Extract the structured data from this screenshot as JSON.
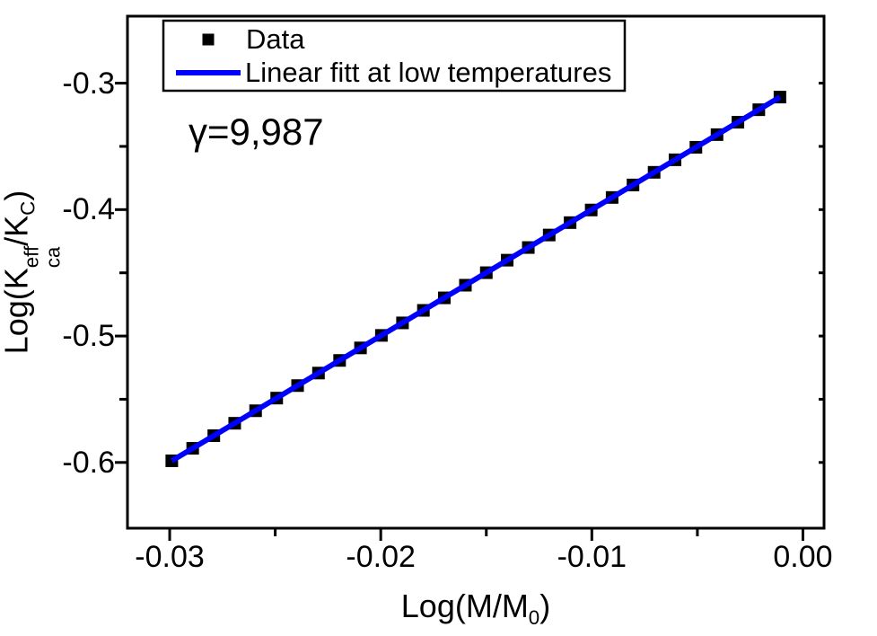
{
  "chart_data": {
    "type": "scatter",
    "title": "",
    "xlabel": "Log(M/M0)",
    "ylabel": "Log(Kca^eff/KC)",
    "xlabel_parts": {
      "pre": "Log(M/M",
      "sub": "0",
      "post": ")"
    },
    "ylabel_parts": {
      "pre": "Log(K",
      "sup": "eff",
      "sub": "ca",
      "mid": "/K",
      "sub2": "C",
      "post": ")"
    },
    "annotation": "γ=9,987",
    "xlim": [
      -0.032,
      0.001
    ],
    "ylim": [
      -0.652,
      -0.247
    ],
    "grid": false,
    "legend_position": "top-left-inside",
    "x_ticks": {
      "major": [
        -0.03,
        -0.02,
        -0.01,
        0.0
      ],
      "labels": [
        "-0.03",
        "-0.02",
        "-0.01",
        "0.00"
      ],
      "minor": [
        -0.025,
        -0.015,
        -0.005
      ]
    },
    "y_ticks": {
      "major": [
        -0.3,
        -0.4,
        -0.5,
        -0.6
      ],
      "labels": [
        "-0.3",
        "-0.4",
        "-0.5",
        "-0.6"
      ],
      "minor": [
        -0.35,
        -0.45,
        -0.55
      ]
    },
    "fit": {
      "slope": 9.987,
      "intercept": -0.3001
    },
    "colors": {
      "data": "#000000",
      "fit_line": "#0000ff",
      "frame": "#000000",
      "background": "#ffffff"
    },
    "series": [
      {
        "name": "Data",
        "type": "scatter",
        "marker": "square",
        "color": "#000000",
        "x": [
          -0.0299,
          -0.02891,
          -0.02791,
          -0.02692,
          -0.02593,
          -0.02493,
          -0.02394,
          -0.02295,
          -0.02195,
          -0.02096,
          -0.01997,
          -0.01897,
          -0.01798,
          -0.01699,
          -0.01599,
          -0.015,
          -0.01401,
          -0.01301,
          -0.01202,
          -0.01103,
          -0.01003,
          -0.00904,
          -0.00805,
          -0.00705,
          -0.00606,
          -0.00507,
          -0.00407,
          -0.00308,
          -0.00209,
          -0.00109
        ],
        "y": [
          -0.5987,
          -0.5888,
          -0.5788,
          -0.569,
          -0.5591,
          -0.5491,
          -0.5392,
          -0.5293,
          -0.5193,
          -0.5094,
          -0.4995,
          -0.4896,
          -0.4797,
          -0.4698,
          -0.4598,
          -0.4499,
          -0.44,
          -0.43,
          -0.4201,
          -0.4103,
          -0.4003,
          -0.3904,
          -0.3805,
          -0.3705,
          -0.3606,
          -0.3507,
          -0.3407,
          -0.3309,
          -0.321,
          -0.311
        ]
      },
      {
        "name": "Linear fitt at low temperatures",
        "type": "line",
        "color": "#0000ff",
        "x": [
          -0.0299,
          -0.00109
        ],
        "y": [
          -0.5987,
          -0.311
        ]
      }
    ]
  }
}
